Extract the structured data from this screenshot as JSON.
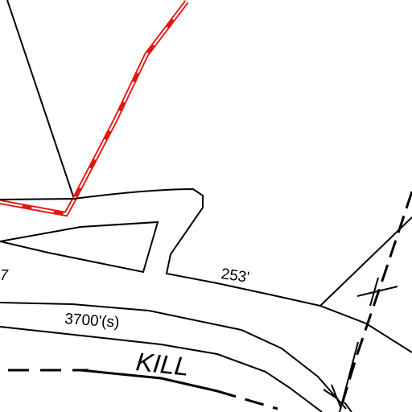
{
  "map": {
    "labels": {
      "dimension_253": "253'",
      "dimension_3700": "3700'(s)",
      "water_name": "KILL",
      "partial_number": "7"
    },
    "colors": {
      "linework": "#000000",
      "highlight_boundary": "#e8140f",
      "background": "#ffffff"
    }
  }
}
